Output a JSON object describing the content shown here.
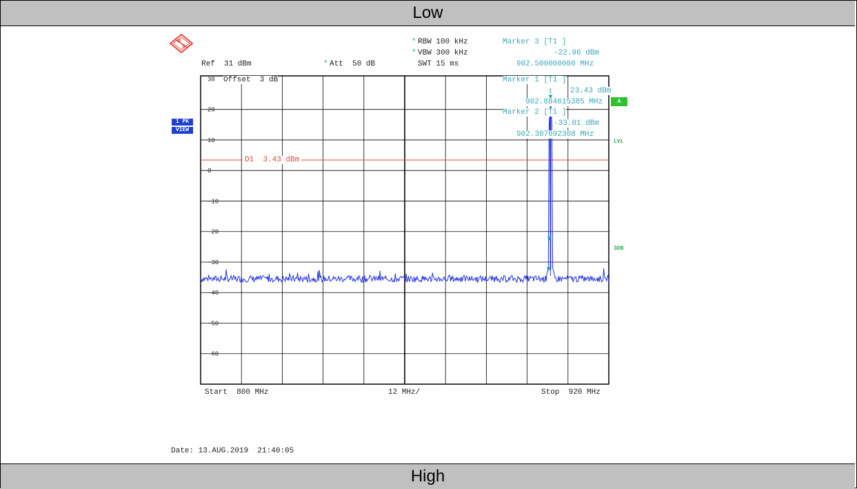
{
  "header_top": "Low",
  "header_bottom": "High",
  "params": {
    "rbw_star": "*",
    "rbw": "RBW 100 kHz",
    "vbw_star": "*",
    "vbw": "VBW 300 kHz",
    "swt": "SWT 15 ms",
    "ref": "Ref  31 dBm",
    "att_star": "*",
    "att": "Att  50 dB",
    "offset": "Offset  3 dB"
  },
  "marker3": {
    "title": "Marker 3 [T1 ]",
    "level": "-22.96 dBm",
    "freq": "902.500000000 MHz"
  },
  "marker1": {
    "title": "Marker 1 [T1 ]",
    "level": "23.43 dBm",
    "freq": "902.884615385 MHz"
  },
  "marker2": {
    "title": "Marker 2 [T1 ]",
    "level": "-33.01 dBm",
    "freq": "902.307692308 MHz"
  },
  "badges": {
    "trace_mode": "1 PK",
    "trace_view": "VIEW",
    "a_box": "A",
    "lvl": "LVL",
    "db3": "3DB"
  },
  "footer": {
    "start": "Start  800 MHz",
    "span": "12 MHz/",
    "stop": "Stop  920 MHz",
    "date": "Date: 13.AUG.2019  21:40:05"
  },
  "colors": {
    "trace": "#2030e0",
    "marker": "#2aa7b0",
    "display_line": "#e8453c",
    "grid": "#000000"
  },
  "chart_data": {
    "type": "line",
    "x_range": [
      800,
      920
    ],
    "ylim": [
      -70,
      31
    ],
    "y_ticks": [
      30,
      20,
      10,
      0,
      -10,
      -20,
      -30,
      -40,
      -50,
      -60
    ],
    "y_tick_labels": [
      "30",
      "20",
      "10",
      "0",
      "-10",
      "-20",
      "-30",
      "-40",
      "-50",
      "-60"
    ],
    "display_line": {
      "label": "D1  3.43 dBm",
      "value": 3.43
    },
    "noise_floor_dbm": -35.5,
    "peak": {
      "x": 902.88,
      "y": 23.43
    },
    "markers": [
      {
        "label": "1",
        "x": 902.88,
        "y": 23.43
      },
      {
        "label": "2",
        "x": 902.31,
        "y": -33.01
      },
      {
        "label": "3",
        "x": 902.5,
        "y": -22.96
      }
    ]
  }
}
